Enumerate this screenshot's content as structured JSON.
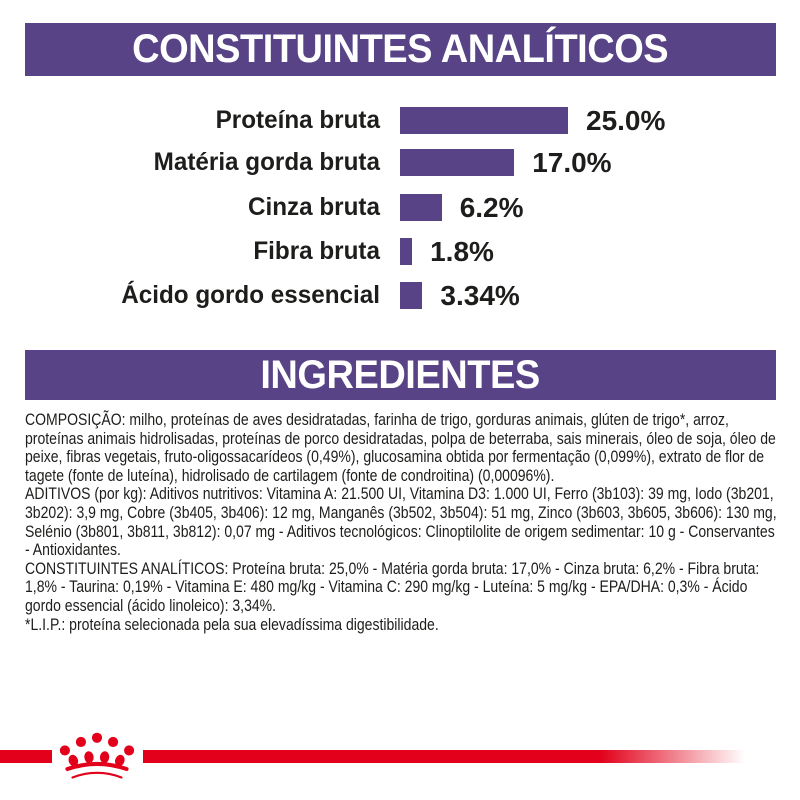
{
  "colors": {
    "purple": "#574386",
    "red": "#e2001a",
    "text": "#1d1d1b",
    "white": "#ffffff"
  },
  "analytical_section": {
    "title": "CONSTITUINTES ANALÍTICOS"
  },
  "chart_data": {
    "type": "bar",
    "orientation": "horizontal",
    "title": "CONSTITUINTES ANALÍTICOS",
    "categories": [
      "Proteína bruta",
      "Matéria gorda bruta",
      "Cinza bruta",
      "Fibra bruta",
      "Ácido gordo essencial"
    ],
    "values": [
      25.0,
      17.0,
      6.2,
      1.8,
      3.34
    ],
    "value_labels": [
      "25.0%",
      "17.0%",
      "6.2%",
      "1.8%",
      "3.34%"
    ],
    "unit": "%",
    "xlim": [
      0,
      25
    ],
    "bar_color": "#574386",
    "grid": false,
    "legend": false,
    "value_label_position": "right-of-bar"
  },
  "ingredients_section": {
    "title": "INGREDIENTES",
    "paragraphs": [
      "COMPOSIÇÃO: milho, proteínas de aves desidratadas, farinha de trigo, gorduras animais, glúten de trigo*, arroz, proteínas animais hidrolisadas, proteínas de porco desidratadas, polpa de beterraba, sais minerais, óleo de soja, óleo de peixe, fibras vegetais, fruto-oligossacarídeos (0,49%), glucosamina obtida por fermentação (0,099%), extrato de flor de tagete (fonte de luteína), hidrolisado de cartilagem (fonte de condroitina) (0,00096%).",
      "ADITIVOS (por kg): Aditivos nutritivos: Vitamina A: 21.500 UI, Vitamina D3: 1.000 UI, Ferro (3b103): 39 mg, Iodo (3b201, 3b202): 3,9 mg, Cobre (3b405, 3b406): 12 mg, Manganês (3b502, 3b504): 51 mg, Zinco (3b603, 3b605, 3b606): 130 mg, Selénio (3b801, 3b811, 3b812): 0,07 mg - Aditivos tecnológicos: Clinoptilolite de origem sedimentar: 10 g - Conservantes - Antioxidantes.",
      "CONSTITUINTES ANALÍTICOS: Proteína bruta: 25,0% - Matéria gorda bruta: 17,0% - Cinza bruta: 6,2% - Fibra bruta: 1,8% - Taurina: 0,19% - Vitamina E: 480 mg/kg - Vitamina C: 290 mg/kg - Luteína: 5 mg/kg - EPA/DHA: 0,3% - Ácido gordo essencial (ácido linoleico): 3,34%.",
      "*L.I.P.: proteína selecionada pela sua elevadíssima digestibilidade."
    ]
  },
  "footer": {
    "brand_logo": "royal-canin-crown"
  }
}
